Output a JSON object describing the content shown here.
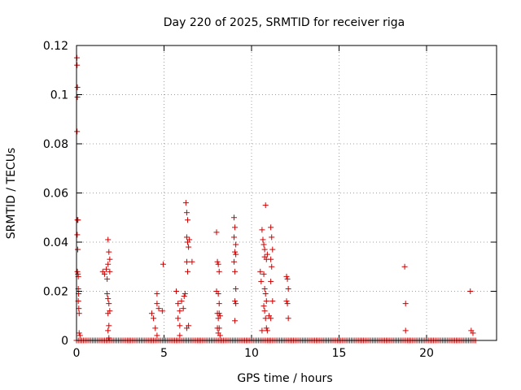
{
  "chart_data": {
    "type": "scatter",
    "title": "Day 220 of 2025, SRMTID for receiver riga",
    "xlabel": "GPS time / hours",
    "ylabel": "SRMTID / TECUs",
    "xlim": [
      0,
      24
    ],
    "ylim": [
      0,
      0.12
    ],
    "xticks": [
      0,
      5,
      10,
      15,
      20
    ],
    "xtick_labels": [
      "0",
      "5",
      "10",
      "15",
      "20"
    ],
    "yticks": [
      0,
      0.02,
      0.04,
      0.06,
      0.08,
      0.1,
      0.12
    ],
    "ytick_labels": [
      "0",
      "0.02",
      "0.04",
      "0.06",
      "0.08",
      "0.1",
      "0.12"
    ],
    "grid": true,
    "marker": "+",
    "color": "#cc0000",
    "baseline": {
      "y": 0,
      "x_ranges": [
        [
          0,
          22.8
        ]
      ],
      "step": 0.1
    },
    "series": [
      {
        "name": "SRMTID",
        "points": [
          [
            0.02,
            0.115
          ],
          [
            0.03,
            0.112
          ],
          [
            0.05,
            0.103
          ],
          [
            0.05,
            0.099
          ],
          [
            0.03,
            0.085
          ],
          [
            0.05,
            0.049
          ],
          [
            0.08,
            0.049
          ],
          [
            0.04,
            0.043
          ],
          [
            0.07,
            0.037
          ],
          [
            0.05,
            0.028
          ],
          [
            0.08,
            0.027
          ],
          [
            0.1,
            0.026
          ],
          [
            0.1,
            0.021
          ],
          [
            0.12,
            0.019
          ],
          [
            0.1,
            0.016
          ],
          [
            0.13,
            0.013
          ],
          [
            0.15,
            0.011
          ],
          [
            0.15,
            0.003
          ],
          [
            0.2,
            0.002
          ],
          [
            1.5,
            0.028
          ],
          [
            1.6,
            0.027
          ],
          [
            1.7,
            0.029
          ],
          [
            1.75,
            0.025
          ],
          [
            1.8,
            0.041
          ],
          [
            1.85,
            0.036
          ],
          [
            1.9,
            0.033
          ],
          [
            1.8,
            0.031
          ],
          [
            1.9,
            0.028
          ],
          [
            1.75,
            0.019
          ],
          [
            1.8,
            0.017
          ],
          [
            1.85,
            0.015
          ],
          [
            1.9,
            0.012
          ],
          [
            1.8,
            0.011
          ],
          [
            1.85,
            0.006
          ],
          [
            1.8,
            0.004
          ],
          [
            1.85,
            0.001
          ],
          [
            4.3,
            0.011
          ],
          [
            4.4,
            0.009
          ],
          [
            4.6,
            0.019
          ],
          [
            4.6,
            0.015
          ],
          [
            4.7,
            0.013
          ],
          [
            4.9,
            0.012
          ],
          [
            4.95,
            0.031
          ],
          [
            4.5,
            0.005
          ],
          [
            4.6,
            0.002
          ],
          [
            5.7,
            0.02
          ],
          [
            5.8,
            0.015
          ],
          [
            5.9,
            0.012
          ],
          [
            5.8,
            0.009
          ],
          [
            5.9,
            0.006
          ],
          [
            6.0,
            0.016
          ],
          [
            6.1,
            0.013
          ],
          [
            6.15,
            0.018
          ],
          [
            6.2,
            0.019
          ],
          [
            6.25,
            0.056
          ],
          [
            6.3,
            0.052
          ],
          [
            6.35,
            0.049
          ],
          [
            6.3,
            0.042
          ],
          [
            6.35,
            0.04
          ],
          [
            6.4,
            0.038
          ],
          [
            6.45,
            0.041
          ],
          [
            6.3,
            0.032
          ],
          [
            6.35,
            0.028
          ],
          [
            6.6,
            0.032
          ],
          [
            6.3,
            0.005
          ],
          [
            6.4,
            0.006
          ],
          [
            5.9,
            0.002
          ],
          [
            8.0,
            0.044
          ],
          [
            8.05,
            0.032
          ],
          [
            8.1,
            0.031
          ],
          [
            8.15,
            0.028
          ],
          [
            8.0,
            0.02
          ],
          [
            8.1,
            0.019
          ],
          [
            8.15,
            0.015
          ],
          [
            8.05,
            0.011
          ],
          [
            8.1,
            0.009
          ],
          [
            8.15,
            0.011
          ],
          [
            8.2,
            0.01
          ],
          [
            8.05,
            0.005
          ],
          [
            8.1,
            0.003
          ],
          [
            8.15,
            0.005
          ],
          [
            8.2,
            0.002
          ],
          [
            9.0,
            0.05
          ],
          [
            9.05,
            0.046
          ],
          [
            9.0,
            0.042
          ],
          [
            9.1,
            0.039
          ],
          [
            9.05,
            0.036
          ],
          [
            9.1,
            0.035
          ],
          [
            9.0,
            0.032
          ],
          [
            9.05,
            0.028
          ],
          [
            9.1,
            0.021
          ],
          [
            9.05,
            0.016
          ],
          [
            9.1,
            0.015
          ],
          [
            9.05,
            0.008
          ],
          [
            10.5,
            0.028
          ],
          [
            10.55,
            0.024
          ],
          [
            10.6,
            0.045
          ],
          [
            10.65,
            0.041
          ],
          [
            10.7,
            0.039
          ],
          [
            10.75,
            0.037
          ],
          [
            10.8,
            0.055
          ],
          [
            10.75,
            0.034
          ],
          [
            10.85,
            0.033
          ],
          [
            10.9,
            0.035
          ],
          [
            10.7,
            0.027
          ],
          [
            10.75,
            0.021
          ],
          [
            10.8,
            0.019
          ],
          [
            10.85,
            0.016
          ],
          [
            10.7,
            0.014
          ],
          [
            10.75,
            0.012
          ],
          [
            10.8,
            0.009
          ],
          [
            10.85,
            0.005
          ],
          [
            10.9,
            0.004
          ],
          [
            10.6,
            0.004
          ],
          [
            11.1,
            0.046
          ],
          [
            11.15,
            0.042
          ],
          [
            11.2,
            0.037
          ],
          [
            11.1,
            0.033
          ],
          [
            11.15,
            0.03
          ],
          [
            11.1,
            0.024
          ],
          [
            11.2,
            0.016
          ],
          [
            11.1,
            0.009
          ],
          [
            11.0,
            0.01
          ],
          [
            12.0,
            0.026
          ],
          [
            12.05,
            0.025
          ],
          [
            12.1,
            0.021
          ],
          [
            12.0,
            0.016
          ],
          [
            12.05,
            0.015
          ],
          [
            12.1,
            0.009
          ],
          [
            18.75,
            0.03
          ],
          [
            18.8,
            0.015
          ],
          [
            18.8,
            0.004
          ],
          [
            22.5,
            0.02
          ],
          [
            22.55,
            0.004
          ],
          [
            22.65,
            0.003
          ]
        ]
      }
    ]
  }
}
